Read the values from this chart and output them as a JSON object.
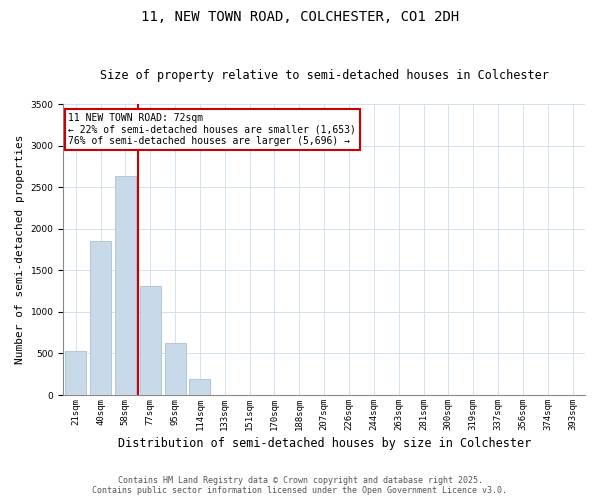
{
  "title1": "11, NEW TOWN ROAD, COLCHESTER, CO1 2DH",
  "title2": "Size of property relative to semi-detached houses in Colchester",
  "xlabel": "Distribution of semi-detached houses by size in Colchester",
  "ylabel": "Number of semi-detached properties",
  "categories": [
    "21sqm",
    "40sqm",
    "58sqm",
    "77sqm",
    "95sqm",
    "114sqm",
    "133sqm",
    "151sqm",
    "170sqm",
    "188sqm",
    "207sqm",
    "226sqm",
    "244sqm",
    "263sqm",
    "281sqm",
    "300sqm",
    "319sqm",
    "337sqm",
    "356sqm",
    "374sqm",
    "393sqm"
  ],
  "values": [
    530,
    1850,
    2640,
    1310,
    630,
    195,
    0,
    0,
    0,
    0,
    0,
    0,
    0,
    0,
    0,
    0,
    0,
    0,
    0,
    0,
    0
  ],
  "bar_color": "#c8daea",
  "bar_edge_color": "#a0b8cc",
  "subject_label": "11 NEW TOWN ROAD: 72sqm",
  "pct_smaller": "22%",
  "pct_larger": "76%",
  "count_smaller": "1,653",
  "count_larger": "5,696",
  "ylim": [
    0,
    3500
  ],
  "vline_x": 2.5,
  "vline_color": "#cc0000",
  "ann_box_edge": "#cc0000",
  "footer1": "Contains HM Land Registry data © Crown copyright and database right 2025.",
  "footer2": "Contains public sector information licensed under the Open Government Licence v3.0.",
  "title_fontsize": 10,
  "subtitle_fontsize": 8.5,
  "ylabel_fontsize": 8,
  "xlabel_fontsize": 8.5,
  "tick_fontsize": 6.5,
  "ann_fontsize": 7,
  "footer_fontsize": 6
}
